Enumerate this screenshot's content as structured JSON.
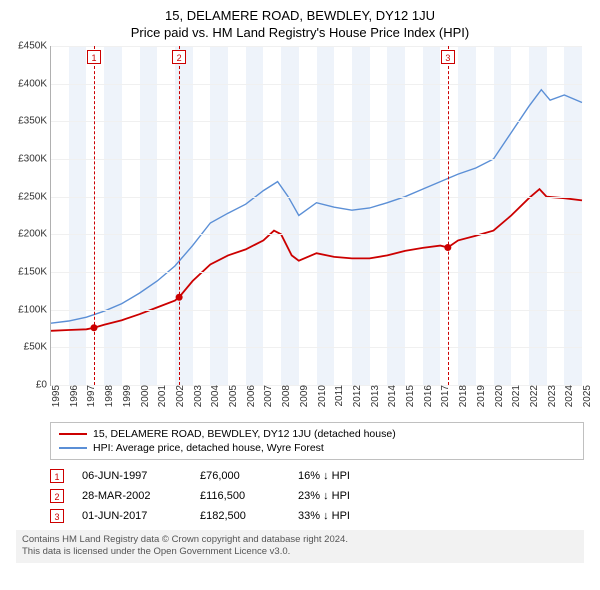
{
  "title": {
    "line1": "15, DELAMERE ROAD, BEWDLEY, DY12 1JU",
    "line2": "Price paid vs. HM Land Registry's House Price Index (HPI)"
  },
  "chart": {
    "type": "line",
    "background_color": "#ffffff",
    "grid_color": "#f0f0f0",
    "axis_color": "#b0b0b0",
    "band_color": "#eef3fa",
    "y": {
      "min": 0,
      "max": 450000,
      "step": 50000,
      "labels": [
        "£0",
        "£50K",
        "£100K",
        "£150K",
        "£200K",
        "£250K",
        "£300K",
        "£350K",
        "£400K",
        "£450K"
      ]
    },
    "x": {
      "min": 1995,
      "max": 2025,
      "labels": [
        "1995",
        "1996",
        "1997",
        "1998",
        "1999",
        "2000",
        "2001",
        "2002",
        "2003",
        "2004",
        "2005",
        "2006",
        "2007",
        "2008",
        "2009",
        "2010",
        "2011",
        "2012",
        "2013",
        "2014",
        "2015",
        "2016",
        "2017",
        "2018",
        "2019",
        "2020",
        "2021",
        "2022",
        "2023",
        "2024",
        "2025"
      ]
    },
    "series": [
      {
        "name": "15, DELAMERE ROAD, BEWDLEY, DY12 1JU (detached house)",
        "color": "#cc0000",
        "line_width": 1.8,
        "points": [
          [
            1995.0,
            72000
          ],
          [
            1996.0,
            73000
          ],
          [
            1997.0,
            74000
          ],
          [
            1997.43,
            76000
          ],
          [
            1998.0,
            80000
          ],
          [
            1999.0,
            86000
          ],
          [
            2000.0,
            94000
          ],
          [
            2001.0,
            103000
          ],
          [
            2002.0,
            112000
          ],
          [
            2002.24,
            116500
          ],
          [
            2003.0,
            138000
          ],
          [
            2004.0,
            160000
          ],
          [
            2005.0,
            172000
          ],
          [
            2006.0,
            180000
          ],
          [
            2007.0,
            192000
          ],
          [
            2007.6,
            205000
          ],
          [
            2008.0,
            200000
          ],
          [
            2008.6,
            172000
          ],
          [
            2009.0,
            165000
          ],
          [
            2010.0,
            175000
          ],
          [
            2011.0,
            170000
          ],
          [
            2012.0,
            168000
          ],
          [
            2013.0,
            168000
          ],
          [
            2014.0,
            172000
          ],
          [
            2015.0,
            178000
          ],
          [
            2016.0,
            182000
          ],
          [
            2017.0,
            185000
          ],
          [
            2017.42,
            182500
          ],
          [
            2018.0,
            192000
          ],
          [
            2019.0,
            198000
          ],
          [
            2020.0,
            205000
          ],
          [
            2021.0,
            225000
          ],
          [
            2022.0,
            248000
          ],
          [
            2022.6,
            260000
          ],
          [
            2023.0,
            250000
          ],
          [
            2024.0,
            248000
          ],
          [
            2025.0,
            245000
          ]
        ],
        "markers": [
          {
            "x": 1997.43,
            "y": 76000
          },
          {
            "x": 2002.24,
            "y": 116500
          },
          {
            "x": 2017.42,
            "y": 182500
          }
        ]
      },
      {
        "name": "HPI: Average price, detached house, Wyre Forest",
        "color": "#5b8fd6",
        "line_width": 1.4,
        "points": [
          [
            1995.0,
            82000
          ],
          [
            1996.0,
            85000
          ],
          [
            1997.0,
            90000
          ],
          [
            1998.0,
            98000
          ],
          [
            1999.0,
            108000
          ],
          [
            2000.0,
            122000
          ],
          [
            2001.0,
            138000
          ],
          [
            2002.0,
            158000
          ],
          [
            2003.0,
            185000
          ],
          [
            2004.0,
            215000
          ],
          [
            2005.0,
            228000
          ],
          [
            2006.0,
            240000
          ],
          [
            2007.0,
            258000
          ],
          [
            2007.8,
            270000
          ],
          [
            2008.4,
            250000
          ],
          [
            2009.0,
            225000
          ],
          [
            2010.0,
            242000
          ],
          [
            2011.0,
            236000
          ],
          [
            2012.0,
            232000
          ],
          [
            2013.0,
            235000
          ],
          [
            2014.0,
            242000
          ],
          [
            2015.0,
            250000
          ],
          [
            2016.0,
            260000
          ],
          [
            2017.0,
            270000
          ],
          [
            2018.0,
            280000
          ],
          [
            2019.0,
            288000
          ],
          [
            2020.0,
            300000
          ],
          [
            2021.0,
            335000
          ],
          [
            2022.0,
            370000
          ],
          [
            2022.7,
            392000
          ],
          [
            2023.2,
            378000
          ],
          [
            2024.0,
            385000
          ],
          [
            2025.0,
            375000
          ]
        ]
      }
    ],
    "vmarkers": [
      {
        "idx": "1",
        "x": 1997.43
      },
      {
        "idx": "2",
        "x": 2002.24
      },
      {
        "idx": "3",
        "x": 2017.42
      }
    ]
  },
  "legend": [
    {
      "color": "#cc0000",
      "label": "15, DELAMERE ROAD, BEWDLEY, DY12 1JU (detached house)"
    },
    {
      "color": "#5b8fd6",
      "label": "HPI: Average price, detached house, Wyre Forest"
    }
  ],
  "transactions": [
    {
      "idx": "1",
      "date": "06-JUN-1997",
      "price": "£76,000",
      "delta": "16% ↓ HPI"
    },
    {
      "idx": "2",
      "date": "28-MAR-2002",
      "price": "£116,500",
      "delta": "23% ↓ HPI"
    },
    {
      "idx": "3",
      "date": "01-JUN-2017",
      "price": "£182,500",
      "delta": "33% ↓ HPI"
    }
  ],
  "footer": {
    "line1": "Contains HM Land Registry data © Crown copyright and database right 2024.",
    "line2": "This data is licensed under the Open Government Licence v3.0."
  }
}
